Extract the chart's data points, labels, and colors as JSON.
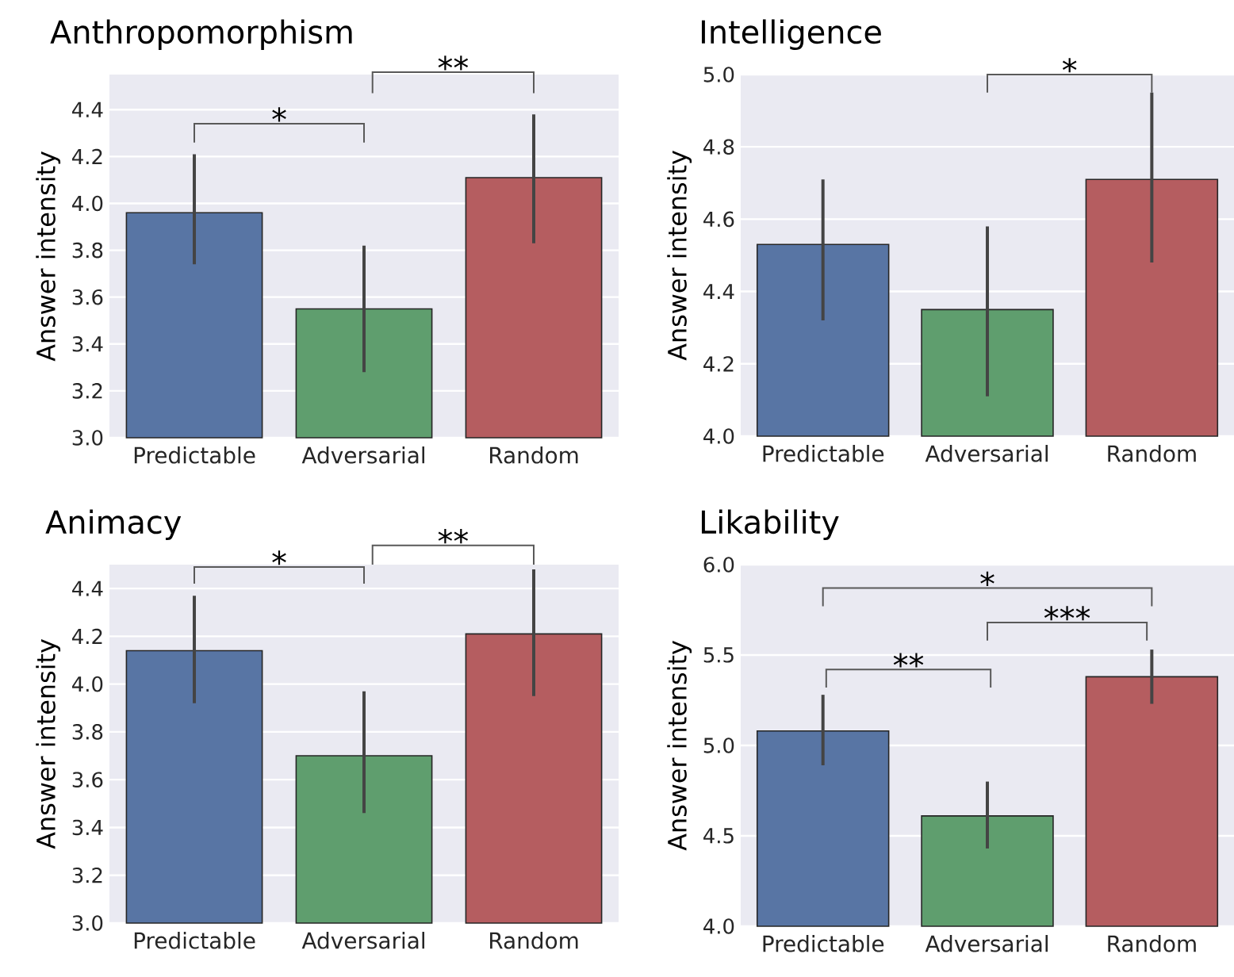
{
  "chart_data": [
    {
      "type": "bar",
      "title": "Anthropomorphism",
      "ylabel": "Answer intensity",
      "categories": [
        "Predictable",
        "Adversarial",
        "Random"
      ],
      "values": [
        3.96,
        3.55,
        4.11
      ],
      "colors": [
        "#5875a4",
        "#5f9e6e",
        "#b55d60"
      ],
      "errors": [
        [
          3.74,
          4.21
        ],
        [
          3.28,
          3.82
        ],
        [
          3.83,
          4.38
        ]
      ],
      "ylim": [
        3,
        4.55
      ],
      "yticks": [
        {
          "value": 3,
          "label": "3.0"
        },
        3.2,
        3.4,
        3.6,
        3.8,
        {
          "value": 4,
          "label": "4.0"
        },
        4.2,
        4.4
      ],
      "grid": "y",
      "annotations": [
        "*",
        "**"
      ]
    },
    {
      "type": "bar",
      "title": "Intelligence",
      "ylabel": "Answer intensity",
      "categories": [
        "Predictable",
        "Adversarial",
        "Random"
      ],
      "values": [
        4.53,
        4.35,
        4.71
      ],
      "colors": [
        "#5875a4",
        "#5f9e6e",
        "#b55d60"
      ],
      "errors": [
        [
          4.32,
          4.71
        ],
        [
          4.11,
          4.58
        ],
        [
          4.48,
          4.95
        ]
      ],
      "ylim": [
        4,
        5
      ],
      "yticks": [
        {
          "value": 4,
          "label": "4.0"
        },
        4.2,
        4.4,
        4.6,
        4.8,
        {
          "value": 5,
          "label": "5.0"
        }
      ],
      "grid": "y",
      "annotations": [
        "*"
      ]
    },
    {
      "type": "bar",
      "title": "Animacy",
      "ylabel": "Answer intensity",
      "categories": [
        "Predictable",
        "Adversarial",
        "Random"
      ],
      "values": [
        4.14,
        3.7,
        4.21
      ],
      "colors": [
        "#5875a4",
        "#5f9e6e",
        "#b55d60"
      ],
      "errors": [
        [
          3.92,
          4.37
        ],
        [
          3.46,
          3.97
        ],
        [
          3.95,
          4.48
        ]
      ],
      "ylim": [
        3,
        4.5
      ],
      "yticks": [
        {
          "value": 3,
          "label": "3.0"
        },
        3.2,
        3.4,
        3.6,
        3.8,
        {
          "value": 4,
          "label": "4.0"
        },
        4.2,
        4.4
      ],
      "grid": "y",
      "annotations": [
        "*",
        "**"
      ]
    },
    {
      "type": "bar",
      "title": "Likability",
      "ylabel": "Answer intensity",
      "categories": [
        "Predictable",
        "Adversarial",
        "Random"
      ],
      "values": [
        5.08,
        4.61,
        5.38
      ],
      "colors": [
        "#5875a4",
        "#5f9e6e",
        "#b55d60"
      ],
      "errors": [
        [
          4.89,
          5.28
        ],
        [
          4.43,
          4.8
        ],
        [
          5.23,
          5.53
        ]
      ],
      "ylim": [
        4,
        6
      ],
      "yticks": [
        {
          "value": 4,
          "label": "4.0"
        },
        4.5,
        {
          "value": 5,
          "label": "5.0"
        },
        5.5,
        {
          "value": 6,
          "label": "6.0"
        }
      ],
      "grid": "y",
      "annotations": [
        "*",
        "***",
        "**"
      ]
    }
  ]
}
